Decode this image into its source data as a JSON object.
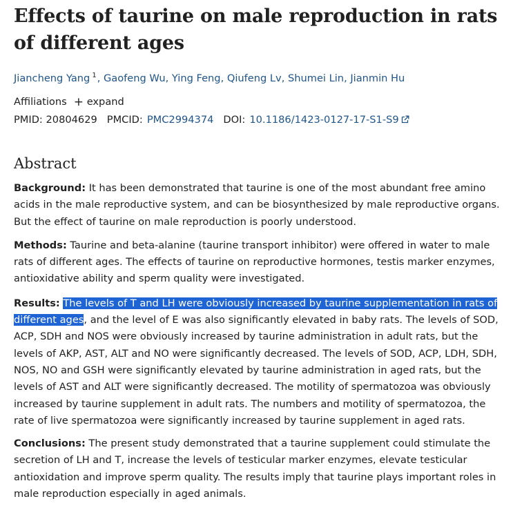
{
  "article": {
    "title": "Effects of taurine on male reproduction in rats of different ages",
    "authors": [
      {
        "name": "Jiancheng Yang",
        "sup": "1"
      },
      {
        "name": "Gaofeng Wu"
      },
      {
        "name": "Ying Feng"
      },
      {
        "name": "Qiufeng Lv"
      },
      {
        "name": "Shumei Lin"
      },
      {
        "name": "Jianmin Hu"
      }
    ],
    "affiliations_label": "Affiliations",
    "expand_label": "expand",
    "pmid_label": "PMID:",
    "pmid_value": "20804629",
    "pmcid_label": "PMCID:",
    "pmcid_value": "PMC2994374",
    "doi_label": "DOI:",
    "doi_value": "10.1186/1423-0127-17-S1-S9"
  },
  "abstract": {
    "heading": "Abstract",
    "background_label": "Background:",
    "background_text": " It has been demonstrated that taurine is one of the most abundant free amino acids in the male reproductive system, and can be biosynthesized by male reproductive organs. But the effect of taurine on male reproduction is poorly understood.",
    "methods_label": "Methods:",
    "methods_text": " Taurine and beta-alanine (taurine transport inhibitor) were offered in water to male rats of different ages. The effects of taurine on reproductive hormones, testis marker enzymes, antioxidative ability and sperm quality were investigated.",
    "results_label": "Results:",
    "results_highlight": "The levels of T and LH were obviously increased by taurine supplementation in rats of different ages",
    "results_text": ", and the level of E was also significantly elevated in baby rats. The levels of SOD, ACP, SDH and NOS were obviously increased by taurine administration in adult rats, but the levels of AKP, AST, ALT and NO were significantly decreased. The levels of SOD, ACP, LDH, SDH, NOS, NO and GSH were significantly elevated by taurine administration in aged rats, but the levels of AST and ALT were significantly decreased. The motility of spermatozoa was obviously increased by taurine supplement in adult rats. The numbers and motility of spermatozoa, the rate of live spermatozoa were significantly increased by taurine supplement in aged rats.",
    "conclusions_label": "Conclusions:",
    "conclusions_text": " The present study demonstrated that a taurine supplement could stimulate the secretion of LH and T, increase the levels of testicular marker enzymes, elevate testicular antioxidation and improve sperm quality. The results imply that taurine plays important roles in male reproduction especially in aged animals."
  },
  "colors": {
    "link": "#20558a",
    "text": "#212121",
    "selection": "#1e64d4"
  },
  "icons": {
    "expand": "plus-icon",
    "external": "external-link-icon"
  }
}
